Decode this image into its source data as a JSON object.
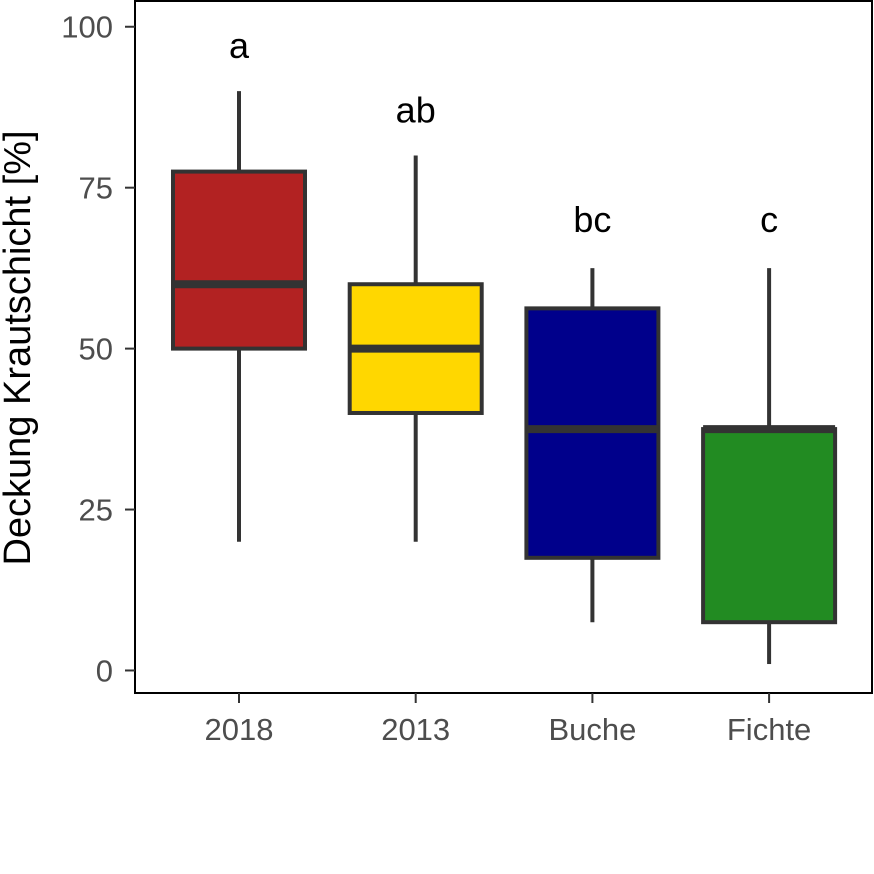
{
  "chart_data": {
    "type": "boxplot",
    "ylabel": "Deckung Krautschicht [%]",
    "xlabel": "",
    "ylim": [
      -3.5,
      104
    ],
    "yticks": [
      0,
      25,
      50,
      75,
      100
    ],
    "grid": false,
    "legend": "none",
    "categories": [
      "2018",
      "2013",
      "Buche",
      "Fichte"
    ],
    "boxes": [
      {
        "category": "2018",
        "whisker_low": 20,
        "q1": 50,
        "median": 60,
        "q3": 77.5,
        "whisker_high": 90,
        "color": "#B22222",
        "significance": "a"
      },
      {
        "category": "2013",
        "whisker_low": 20,
        "q1": 40,
        "median": 50,
        "q3": 60,
        "whisker_high": 80,
        "color": "#FFD700",
        "significance": "ab"
      },
      {
        "category": "Buche",
        "whisker_low": 7.5,
        "q1": 17.5,
        "median": 37.5,
        "q3": 56.25,
        "whisker_high": 62.5,
        "color": "#00008B",
        "significance": "bc"
      },
      {
        "category": "Fichte",
        "whisker_low": 1,
        "q1": 7.5,
        "median": 37.5,
        "q3": 37.5,
        "whisker_high": 62.5,
        "color": "#228B22",
        "significance": "c"
      }
    ],
    "significance_y": [
      97,
      87,
      70,
      70
    ]
  }
}
